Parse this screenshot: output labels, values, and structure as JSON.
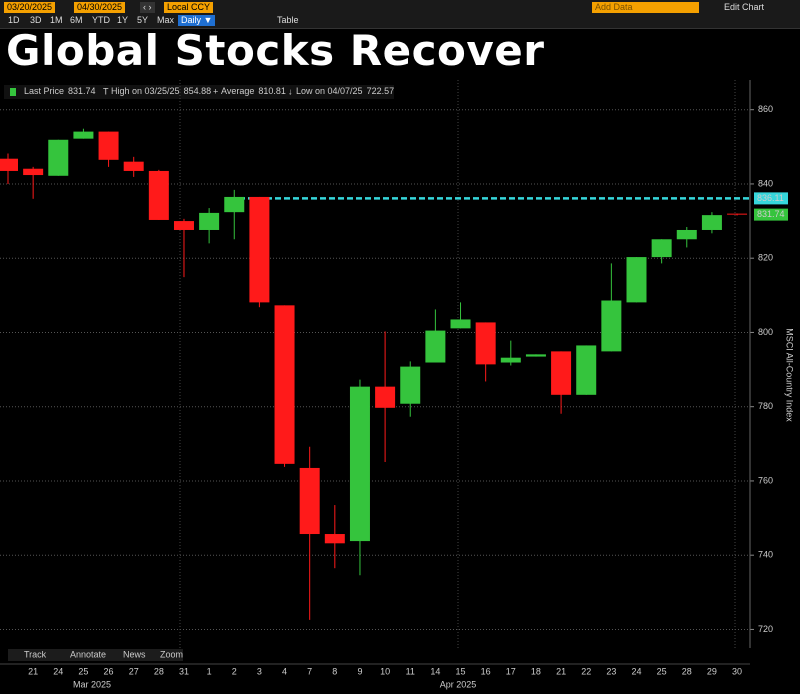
{
  "toolbar": {
    "start_date": "03/20/2025",
    "end_date": "04/30/2025",
    "currency": "Local CCY",
    "ranges": [
      "1D",
      "3D",
      "1M",
      "6M",
      "YTD",
      "1Y",
      "5Y",
      "Max"
    ],
    "frequency": "Daily ▼",
    "table": "Table",
    "add_data": "Add Data",
    "edit_chart": "Edit Chart"
  },
  "bottom_tools": [
    "Track",
    "Annotate",
    "News",
    "Zoom"
  ],
  "chart_data": {
    "type": "candlestick",
    "title": "Global Stocks Recover",
    "ylabel": "MSCI All-Country Index",
    "legend": {
      "last_price": {
        "label": "Last Price",
        "value": 831.74
      },
      "high": {
        "label": "High on 03/25/25",
        "value": 854.88
      },
      "average": {
        "label": "Average",
        "value": 810.81
      },
      "low": {
        "label": "Low on 04/07/25",
        "value": 722.57
      }
    },
    "categories": [
      null,
      "21",
      "24",
      "25",
      "26",
      "27",
      "28",
      "31",
      "1",
      "2",
      "3",
      "4",
      "7",
      "8",
      "9",
      "10",
      "11",
      "14",
      "15",
      "16",
      "17",
      "18",
      "21",
      "22",
      "23",
      "24",
      "25",
      "28",
      "29",
      "30"
    ],
    "months": [
      "Mar 2025",
      "Apr 2025"
    ],
    "open": [
      846.8,
      844.1,
      842.2,
      852.2,
      854.1,
      846.0,
      843.5,
      830.0,
      827.6,
      832.4,
      836.5,
      807.3,
      763.5,
      745.7,
      743.8,
      785.4,
      780.8,
      791.9,
      801.1,
      802.7,
      791.9,
      793.5,
      794.9,
      783.2,
      794.9,
      808.1,
      820.3,
      825.1,
      827.6,
      832.0
    ],
    "high": [
      848.2,
      844.6,
      851.9,
      854.88,
      854.1,
      847.3,
      843.8,
      830.6,
      833.5,
      838.4,
      836.5,
      807.3,
      769.2,
      753.5,
      787.3,
      800.3,
      792.2,
      806.2,
      808.1,
      802.7,
      797.8,
      794.1,
      794.9,
      796.5,
      818.6,
      820.3,
      825.1,
      828.4,
      832.4,
      832.0
    ],
    "low": [
      840.0,
      836.0,
      842.2,
      852.2,
      844.6,
      841.9,
      830.3,
      814.9,
      824.0,
      825.1,
      806.8,
      763.8,
      722.57,
      736.5,
      734.6,
      765.1,
      777.3,
      791.9,
      801.1,
      786.8,
      791.1,
      793.5,
      778.1,
      783.2,
      794.9,
      808.1,
      818.6,
      822.9,
      826.7,
      831.5
    ],
    "close": [
      843.5,
      842.4,
      851.9,
      854.1,
      846.5,
      843.5,
      830.3,
      827.6,
      832.2,
      836.5,
      808.1,
      764.6,
      745.7,
      743.2,
      785.4,
      779.7,
      790.8,
      800.5,
      803.5,
      791.4,
      793.2,
      794.1,
      783.2,
      796.5,
      808.6,
      820.3,
      825.1,
      827.6,
      831.6,
      831.74
    ],
    "up_color": "#35c43d",
    "down_color": "#ff1a1a",
    "hline": {
      "value": 836.11,
      "color": "#36d7dc"
    },
    "ylim": [
      715,
      868
    ],
    "yticks": [
      720,
      740,
      760,
      780,
      800,
      820,
      840,
      860
    ],
    "grid": true
  }
}
